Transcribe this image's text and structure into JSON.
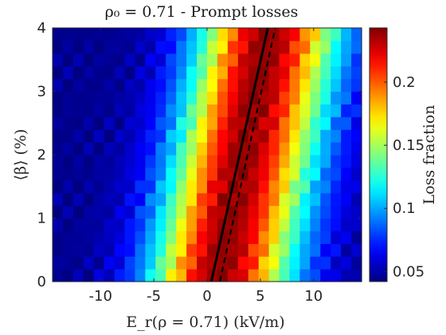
{
  "chart_data": {
    "type": "heatmap",
    "title": "ρ₀ = 0.71 - Prompt losses",
    "xlabel": "E_r(ρ = 0.71) (kV/m)",
    "ylabel": "⟨β⟩ (%)",
    "colorbar_label": "Loss fraction",
    "xlim": [
      -14.5,
      14.5
    ],
    "ylim": [
      0,
      4
    ],
    "x_ticks": [
      -10,
      -5,
      0,
      5,
      10
    ],
    "x_tick_labels": [
      "-10",
      "-5",
      "0",
      "5",
      "10"
    ],
    "y_ticks": [
      0,
      1,
      2,
      3,
      4
    ],
    "y_tick_labels": [
      "0",
      "1",
      "2",
      "3",
      "4"
    ],
    "colorbar_range": [
      0.042,
      0.243
    ],
    "colorbar_ticks": [
      0.05,
      0.1,
      0.15,
      0.2
    ],
    "colorbar_tick_labels": [
      "0.05",
      "0.1",
      "0.15",
      "0.2"
    ],
    "colormap": "jet",
    "grid": false,
    "nx": 30,
    "ny": 20,
    "ridge": {
      "e_at_beta0": 1.0,
      "e_slope_per_beta": 1.2,
      "width_low": 4.5,
      "width_high": 4.8,
      "min": 0.045,
      "max": 0.24
    },
    "series": [
      {
        "style": "solid",
        "color": "#000000",
        "x": [
          0.4,
          5.7
        ],
        "y": [
          0,
          4
        ]
      },
      {
        "style": "dashed",
        "color": "#000000",
        "x": [
          1.2,
          6.4
        ],
        "y": [
          0,
          4
        ]
      }
    ]
  }
}
